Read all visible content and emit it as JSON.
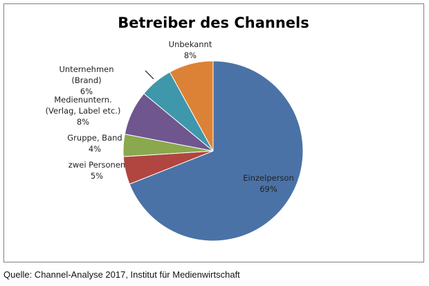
{
  "chart_data": {
    "type": "pie",
    "title": "Betreiber des Channels",
    "categories": [
      "Einzelperson",
      "zwei Personen",
      "Gruppe, Band",
      "Medienuntern.\n(Verlag, Label etc.)",
      "Unternehmen\n(Brand)",
      "Unbekannt"
    ],
    "values": [
      69,
      5,
      4,
      8,
      6,
      8
    ],
    "value_labels": [
      "69%",
      "5%",
      "4%",
      "8%",
      "6%",
      "8%"
    ],
    "colors": [
      "#4a72a6",
      "#b0463f",
      "#8aa84e",
      "#6f568f",
      "#3f97ab",
      "#dc8236"
    ],
    "source": "Quelle: Channel-Analyse 2017, Institut für Medienwirtschaft"
  }
}
